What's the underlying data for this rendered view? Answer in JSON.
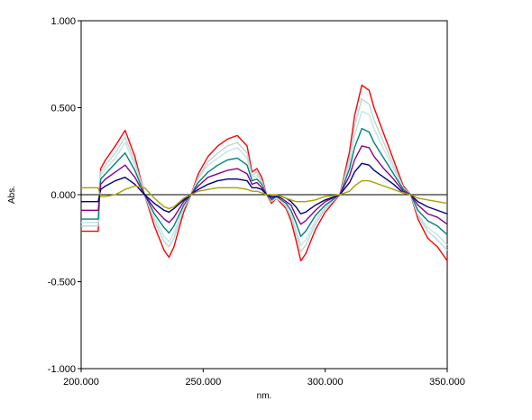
{
  "chart_data": {
    "type": "line",
    "title": "",
    "xlabel": "nm.",
    "ylabel": "Abs.",
    "xlim": [
      200,
      350
    ],
    "ylim": [
      -1.0,
      1.0
    ],
    "x_ticks": [
      200,
      250,
      300,
      350
    ],
    "x_tick_labels": [
      "200.000",
      "250.000",
      "300.000",
      "350.000"
    ],
    "y_ticks": [
      1.0,
      0.5,
      0.0,
      -0.5,
      -1.0
    ],
    "y_tick_labels": [
      "1.000",
      "0.500",
      "0.000",
      "-0.500",
      "-1.000"
    ],
    "grid": false,
    "legend": "none",
    "x": [
      207,
      208,
      210,
      214,
      218,
      222,
      226,
      230,
      234,
      236,
      238,
      242,
      245,
      248,
      252,
      256,
      260,
      264,
      268,
      270,
      272,
      274,
      276,
      278,
      280,
      282,
      284,
      286,
      288,
      290,
      292,
      296,
      300,
      306,
      310,
      312,
      315,
      318,
      320,
      324,
      328,
      332,
      335,
      338,
      342,
      346,
      350
    ],
    "series": [
      {
        "color": "#ff0000",
        "values": [
          -0.21,
          0.15,
          0.2,
          0.28,
          0.37,
          0.22,
          0.0,
          -0.18,
          -0.32,
          -0.36,
          -0.3,
          -0.1,
          0.0,
          0.12,
          0.22,
          0.28,
          0.32,
          0.34,
          0.28,
          0.13,
          0.15,
          0.1,
          0.0,
          -0.05,
          -0.02,
          -0.05,
          -0.08,
          -0.15,
          -0.26,
          -0.38,
          -0.34,
          -0.2,
          -0.1,
          0.0,
          0.25,
          0.45,
          0.63,
          0.6,
          0.5,
          0.35,
          0.2,
          0.05,
          0.0,
          -0.14,
          -0.25,
          -0.3,
          -0.38
        ]
      },
      {
        "color": "#b8d8d8",
        "values": [
          -0.18,
          0.13,
          0.17,
          0.24,
          0.33,
          0.19,
          0.0,
          -0.15,
          -0.27,
          -0.3,
          -0.25,
          -0.08,
          0.0,
          0.1,
          0.19,
          0.24,
          0.28,
          0.3,
          0.24,
          0.11,
          0.13,
          0.08,
          0.0,
          -0.04,
          -0.02,
          -0.04,
          -0.07,
          -0.13,
          -0.22,
          -0.33,
          -0.29,
          -0.17,
          -0.08,
          0.0,
          0.21,
          0.39,
          0.55,
          0.52,
          0.43,
          0.3,
          0.17,
          0.04,
          0.0,
          -0.12,
          -0.21,
          -0.26,
          -0.32
        ]
      },
      {
        "color": "#c4e4e4",
        "values": [
          -0.16,
          0.11,
          0.15,
          0.21,
          0.3,
          0.17,
          0.0,
          -0.13,
          -0.24,
          -0.27,
          -0.22,
          -0.07,
          0.0,
          0.09,
          0.17,
          0.21,
          0.25,
          0.27,
          0.21,
          0.1,
          0.11,
          0.07,
          0.0,
          -0.03,
          -0.02,
          -0.04,
          -0.06,
          -0.11,
          -0.2,
          -0.29,
          -0.26,
          -0.15,
          -0.07,
          0.0,
          0.18,
          0.34,
          0.48,
          0.46,
          0.38,
          0.26,
          0.15,
          0.03,
          0.0,
          -0.11,
          -0.19,
          -0.23,
          -0.29
        ]
      },
      {
        "color": "#008080",
        "values": [
          -0.14,
          0.09,
          0.12,
          0.18,
          0.24,
          0.14,
          0.0,
          -0.11,
          -0.19,
          -0.22,
          -0.18,
          -0.06,
          0.0,
          0.07,
          0.13,
          0.17,
          0.2,
          0.21,
          0.17,
          0.08,
          0.09,
          0.06,
          0.0,
          -0.03,
          -0.01,
          -0.03,
          -0.05,
          -0.09,
          -0.16,
          -0.24,
          -0.21,
          -0.12,
          -0.06,
          0.0,
          0.15,
          0.27,
          0.38,
          0.36,
          0.3,
          0.21,
          0.12,
          0.03,
          0.0,
          -0.09,
          -0.15,
          -0.18,
          -0.23
        ]
      },
      {
        "color": "#8b008b",
        "values": [
          -0.09,
          0.06,
          0.09,
          0.13,
          0.17,
          0.1,
          0.0,
          -0.08,
          -0.14,
          -0.16,
          -0.13,
          -0.04,
          0.0,
          0.05,
          0.1,
          0.12,
          0.14,
          0.15,
          0.12,
          0.06,
          0.07,
          0.04,
          0.0,
          -0.02,
          -0.01,
          -0.02,
          -0.04,
          -0.06,
          -0.12,
          -0.17,
          -0.15,
          -0.09,
          -0.04,
          0.0,
          0.11,
          0.2,
          0.28,
          0.27,
          0.22,
          0.15,
          0.09,
          0.02,
          0.0,
          -0.06,
          -0.11,
          -0.13,
          -0.17
        ]
      },
      {
        "color": "#000080",
        "values": [
          -0.04,
          0.03,
          0.05,
          0.08,
          0.1,
          0.06,
          0.0,
          -0.05,
          -0.09,
          -0.1,
          -0.08,
          -0.03,
          0.0,
          0.03,
          0.06,
          0.08,
          0.09,
          0.09,
          0.08,
          0.04,
          0.04,
          0.03,
          0.0,
          -0.01,
          -0.01,
          -0.01,
          -0.02,
          -0.04,
          -0.07,
          -0.11,
          -0.1,
          -0.06,
          -0.03,
          0.0,
          0.07,
          0.13,
          0.18,
          0.17,
          0.14,
          0.1,
          0.06,
          0.01,
          0.0,
          -0.04,
          -0.07,
          -0.09,
          -0.11
        ]
      },
      {
        "color": "#a8a000",
        "values": [
          0.04,
          -0.01,
          -0.01,
          0.0,
          0.03,
          0.05,
          0.04,
          -0.02,
          -0.07,
          -0.08,
          -0.07,
          -0.02,
          0.0,
          0.02,
          0.03,
          0.04,
          0.04,
          0.04,
          0.03,
          0.02,
          0.02,
          0.01,
          0.0,
          0.0,
          0.0,
          -0.01,
          -0.02,
          -0.03,
          -0.04,
          -0.04,
          -0.04,
          -0.03,
          -0.01,
          0.0,
          0.02,
          0.05,
          0.08,
          0.08,
          0.07,
          0.05,
          0.03,
          0.01,
          0.0,
          -0.02,
          -0.03,
          -0.04,
          -0.05
        ]
      }
    ]
  }
}
